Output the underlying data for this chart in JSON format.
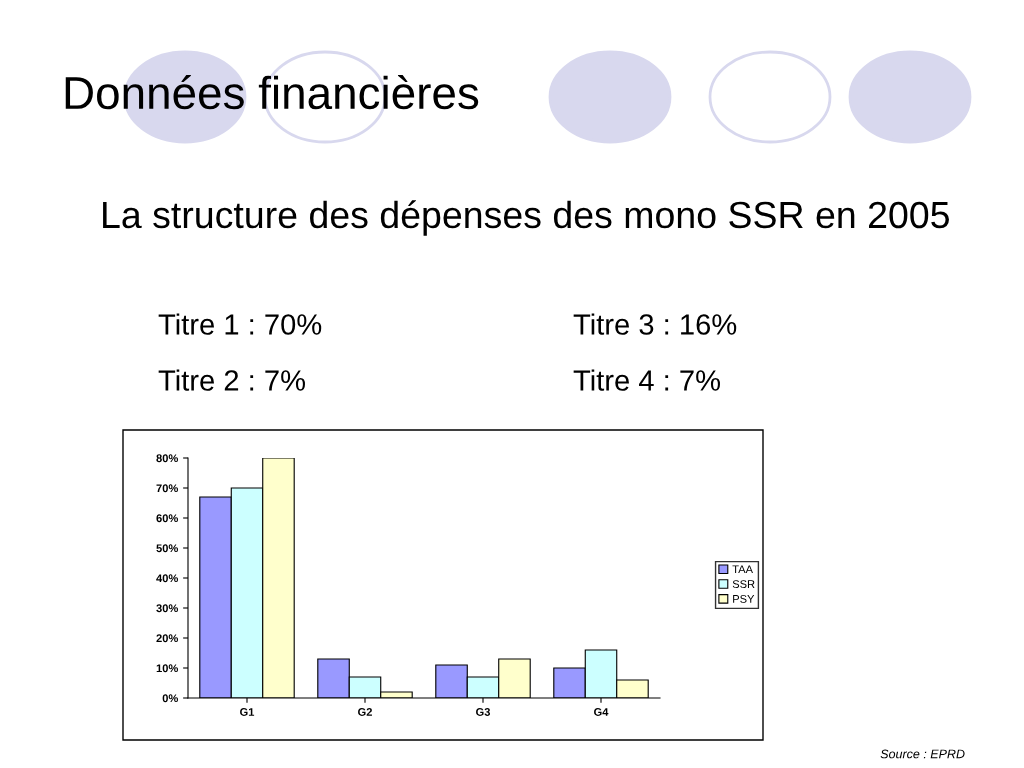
{
  "chart_data": {
    "type": "bar",
    "title": "Données financières",
    "subtitle": "La structure des dépenses des mono SSR en 2005",
    "annotations": [
      "Titre 1 : 70%",
      "Titre 3 : 16%",
      "Titre 2 : 7%",
      "Titre 4 : 7%",
      "Source : EPRD"
    ],
    "categories": [
      "G1",
      "G2",
      "G3",
      "G4"
    ],
    "series": [
      {
        "name": "TAA",
        "color": "#9999ff",
        "values": [
          67,
          13,
          11,
          10
        ]
      },
      {
        "name": "SSR",
        "color": "#ccffff",
        "values": [
          70,
          7,
          7,
          16
        ]
      },
      {
        "name": "PSY",
        "color": "#ffffcc",
        "values": [
          80,
          2,
          13,
          6
        ]
      }
    ],
    "ylim": [
      0,
      80
    ],
    "yticks": [
      {
        "value": 0,
        "label": "0%"
      },
      {
        "value": 10,
        "label": "10%"
      },
      {
        "value": 20,
        "label": "20%"
      },
      {
        "value": 30,
        "label": "30%"
      },
      {
        "value": 40,
        "label": "40%"
      },
      {
        "value": 50,
        "label": "50%"
      },
      {
        "value": 60,
        "label": "60%"
      },
      {
        "value": 70,
        "label": "70%"
      },
      {
        "value": 80,
        "label": "80%"
      }
    ],
    "legend": "right"
  }
}
